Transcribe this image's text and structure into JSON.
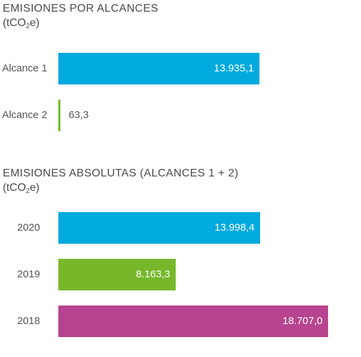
{
  "chart_data": [
    {
      "type": "bar",
      "orientation": "horizontal",
      "title": "EMISIONES POR ALCANCES",
      "unit": {
        "prefix": "(tCO",
        "sub": "2",
        "suffix": "e)"
      },
      "categories": [
        "Alcance 1",
        "Alcance 2"
      ],
      "values": [
        13935.1,
        63.3
      ],
      "value_labels": [
        "13.935,1",
        "63,3"
      ],
      "colors": [
        "#00a9de",
        "#76b82a"
      ]
    },
    {
      "type": "bar",
      "orientation": "horizontal",
      "title": "EMISIONES ABSOLUTAS (ALCANCES 1 + 2)",
      "unit": {
        "prefix": "(tCO",
        "sub": "2",
        "suffix": "e)"
      },
      "categories": [
        "2020",
        "2019",
        "2018"
      ],
      "values": [
        13998.4,
        8163.3,
        18707.0
      ],
      "value_labels": [
        "13.998,4",
        "8.163,3",
        "18.707,0"
      ],
      "colors": [
        "#00a9de",
        "#76b82a",
        "#b8438f"
      ]
    }
  ]
}
